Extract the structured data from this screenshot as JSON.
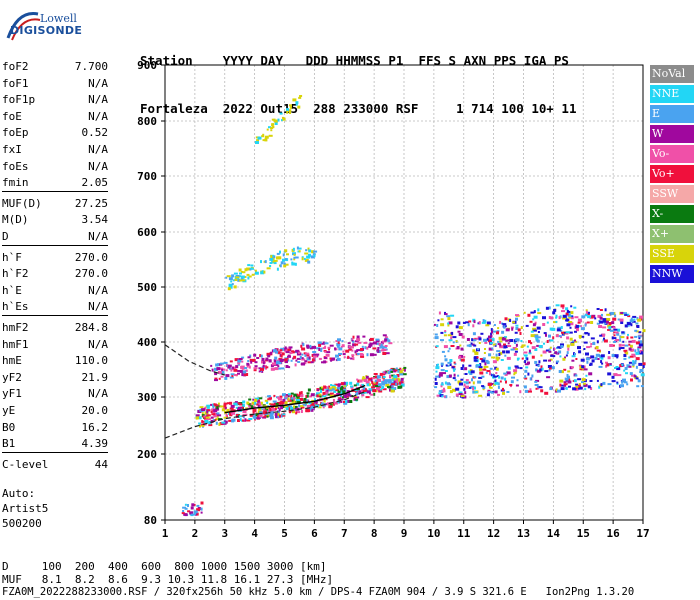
{
  "logo": {
    "line1": "Lowell",
    "line2": "DIGISONDE"
  },
  "header": {
    "line1": "Station    YYYY DAY   DDD HHMMSS P1  FFS S AXN PPS IGA PS",
    "line2": "Fortaleza  2022 Out15  288 233000 RSF     1 714 100 10+ 11"
  },
  "params": [
    {
      "k": "foF2",
      "v": "7.700"
    },
    {
      "k": "foF1",
      "v": "N/A"
    },
    {
      "k": "foF1p",
      "v": "N/A"
    },
    {
      "k": "foE",
      "v": "N/A"
    },
    {
      "k": "foEp",
      "v": "0.52"
    },
    {
      "k": "fxI",
      "v": "N/A"
    },
    {
      "k": "foEs",
      "v": "N/A"
    },
    {
      "k": "fmin",
      "v": "2.05"
    },
    {
      "k": "MUF(D)",
      "v": "27.25"
    },
    {
      "k": "M(D)",
      "v": "3.54"
    },
    {
      "k": "D",
      "v": "N/A"
    },
    {
      "k": "h`F",
      "v": "270.0"
    },
    {
      "k": "h`F2",
      "v": "270.0"
    },
    {
      "k": "h`E",
      "v": "N/A"
    },
    {
      "k": "h`Es",
      "v": "N/A"
    },
    {
      "k": "hmF2",
      "v": "284.8"
    },
    {
      "k": "hmF1",
      "v": "N/A"
    },
    {
      "k": "hmE",
      "v": "110.0"
    },
    {
      "k": "yF2",
      "v": "21.9"
    },
    {
      "k": "yF1",
      "v": "N/A"
    },
    {
      "k": "yE",
      "v": "20.0"
    },
    {
      "k": "B0",
      "v": "16.2"
    },
    {
      "k": "B1",
      "v": "4.39"
    },
    {
      "k": "C-level",
      "v": "44"
    }
  ],
  "auto": {
    "line1": "Auto:",
    "line2": "Artist5",
    "line3": "500200"
  },
  "legend": [
    {
      "label": "NoVal",
      "color": "#8c8c8c"
    },
    {
      "label": "NNE",
      "color": "#22d6f5"
    },
    {
      "label": "E",
      "color": "#4aa3f0"
    },
    {
      "label": "W",
      "color": "#a0089e"
    },
    {
      "label": "Vo-",
      "color": "#f050a8"
    },
    {
      "label": "Vo+",
      "color": "#f0103c"
    },
    {
      "label": "SSW",
      "color": "#f5a8a8"
    },
    {
      "label": "X-",
      "color": "#0a7a10"
    },
    {
      "label": "X+",
      "color": "#8ec070"
    },
    {
      "label": "SSE",
      "color": "#d8d40a"
    },
    {
      "label": "NNW",
      "color": "#1a10d8"
    }
  ],
  "footer": {
    "d_label": "D",
    "d_values": "100  200  400  600  800 1000 1500 3000 [km]",
    "muf_label": "MUF",
    "muf_values": "8.1  8.2  8.6  9.3 10.3 11.8 16.1 27.3 [MHz]",
    "info": "FZA0M_2022288233000.RSF / 320fx256h 50 kHz 5.0 km / DPS-4 FZA0M 904 / 3.9 S 321.6 E   Ion2Png 1.3.20"
  },
  "chart_data": {
    "type": "scatter",
    "title": "",
    "xlabel": "",
    "ylabel": "",
    "xlim": [
      1,
      17
    ],
    "ylim": [
      80,
      900
    ],
    "x_ticks": [
      1,
      2,
      3,
      4,
      5,
      6,
      7,
      8,
      9,
      10,
      11,
      12,
      13,
      14,
      15,
      16,
      17
    ],
    "y_ticks": [
      80,
      200,
      300,
      400,
      500,
      600,
      700,
      800,
      900
    ],
    "grid": true,
    "trace_bands": [
      {
        "name": "F-layer trace",
        "x": [
          2.0,
          3.0,
          4.0,
          5.0,
          6.0,
          7.0,
          8.0,
          9.0
        ],
        "y_low": [
          250,
          255,
          262,
          270,
          280,
          292,
          305,
          320
        ],
        "y_high": [
          285,
          292,
          300,
          308,
          318,
          330,
          345,
          360
        ]
      },
      {
        "name": "secondary echoes",
        "x": [
          2.5,
          4.0,
          5.5,
          7.0,
          8.5
        ],
        "y_low": [
          330,
          345,
          360,
          370,
          380
        ],
        "y_high": [
          360,
          380,
          400,
          410,
          420
        ]
      },
      {
        "name": "oblique echoes 500-580",
        "x": [
          3.0,
          4.0,
          5.0,
          6.0
        ],
        "y_low": [
          495,
          520,
          540,
          550
        ],
        "y_high": [
          520,
          550,
          570,
          580
        ]
      },
      {
        "name": "high echoes 750-860",
        "x": [
          4.0,
          5.0,
          5.5
        ],
        "y_low": [
          750,
          800,
          830
        ],
        "y_high": [
          770,
          830,
          860
        ]
      },
      {
        "name": "spread F 10-17 MHz",
        "x": [
          10.0,
          12.0,
          14.0,
          16.0,
          17.0
        ],
        "y_low": [
          300,
          305,
          310,
          320,
          320
        ],
        "y_high": [
          460,
          440,
          470,
          460,
          450
        ]
      },
      {
        "name": "low echoes",
        "x": [
          1.5,
          2.2
        ],
        "y_low": [
          90,
          90
        ],
        "y_high": [
          110,
          115
        ]
      }
    ],
    "fitted_profile": {
      "upper": {
        "x": [
          1.0,
          1.8,
          2.5,
          3.0
        ],
        "y": [
          395,
          365,
          348,
          340
        ]
      },
      "lower": {
        "x": [
          1.0,
          2.0,
          3.0,
          4.0,
          5.0,
          6.0,
          7.0,
          7.7
        ],
        "y": [
          228,
          248,
          262,
          270,
          275,
          282,
          295,
          310
        ]
      }
    }
  }
}
